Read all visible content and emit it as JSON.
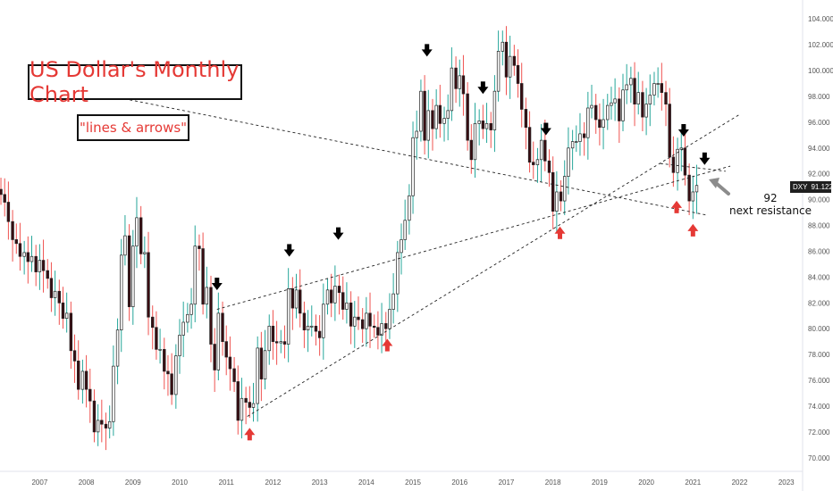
{
  "chart_data": {
    "type": "candlestick",
    "title": "US Dollar's Monthly Chart",
    "subtitle": "\"lines & arrows\"",
    "symbol": "DXY",
    "last_price": "91.122",
    "annotation_value": "92",
    "annotation_text": "next resistance",
    "x_ticks": [
      "2007",
      "2008",
      "2009",
      "2010",
      "2011",
      "2012",
      "2013",
      "2014",
      "2015",
      "2016",
      "2017",
      "2018",
      "2019",
      "2020",
      "2021",
      "2022",
      "2023"
    ],
    "y_ticks": [
      "104.000",
      "102.000",
      "100.000",
      "98.000",
      "96.000",
      "94.000",
      "92.000",
      "90.000",
      "88.000",
      "86.000",
      "84.000",
      "82.000",
      "80.000",
      "78.000",
      "76.000",
      "74.000",
      "72.000",
      "70.000"
    ],
    "ylim": [
      69.5,
      104.5
    ],
    "xlim": [
      2006.15,
      2023.35
    ],
    "closes": [
      {
        "t": 2006.17,
        "c": 90.4
      },
      {
        "t": 2006.25,
        "c": 89.8
      },
      {
        "t": 2006.33,
        "c": 88.3
      },
      {
        "t": 2006.42,
        "c": 86.9
      },
      {
        "t": 2006.5,
        "c": 86.6
      },
      {
        "t": 2006.58,
        "c": 85.6
      },
      {
        "t": 2006.67,
        "c": 85.9
      },
      {
        "t": 2006.75,
        "c": 85.2
      },
      {
        "t": 2006.83,
        "c": 85.6
      },
      {
        "t": 2006.92,
        "c": 84.4
      },
      {
        "t": 2007.0,
        "c": 85.3
      },
      {
        "t": 2007.08,
        "c": 84.5
      },
      {
        "t": 2007.17,
        "c": 83.9
      },
      {
        "t": 2007.25,
        "c": 82.4
      },
      {
        "t": 2007.33,
        "c": 82.9
      },
      {
        "t": 2007.42,
        "c": 82.0
      },
      {
        "t": 2007.5,
        "c": 80.8
      },
      {
        "t": 2007.58,
        "c": 81.2
      },
      {
        "t": 2007.67,
        "c": 78.3
      },
      {
        "t": 2007.75,
        "c": 77.5
      },
      {
        "t": 2007.83,
        "c": 75.3
      },
      {
        "t": 2007.92,
        "c": 76.7
      },
      {
        "t": 2008.0,
        "c": 75.3
      },
      {
        "t": 2008.08,
        "c": 74.4
      },
      {
        "t": 2008.17,
        "c": 72.0
      },
      {
        "t": 2008.25,
        "c": 72.9
      },
      {
        "t": 2008.33,
        "c": 72.6
      },
      {
        "t": 2008.42,
        "c": 72.3
      },
      {
        "t": 2008.5,
        "c": 72.8
      },
      {
        "t": 2008.58,
        "c": 77.1
      },
      {
        "t": 2008.67,
        "c": 79.9
      },
      {
        "t": 2008.75,
        "c": 85.7
      },
      {
        "t": 2008.83,
        "c": 87.2
      },
      {
        "t": 2008.92,
        "c": 81.7
      },
      {
        "t": 2009.0,
        "c": 86.4
      },
      {
        "t": 2009.08,
        "c": 88.6
      },
      {
        "t": 2009.17,
        "c": 85.8
      },
      {
        "t": 2009.25,
        "c": 85.9
      },
      {
        "t": 2009.33,
        "c": 80.9
      },
      {
        "t": 2009.42,
        "c": 80.1
      },
      {
        "t": 2009.5,
        "c": 78.4
      },
      {
        "t": 2009.58,
        "c": 78.4
      },
      {
        "t": 2009.67,
        "c": 76.7
      },
      {
        "t": 2009.75,
        "c": 76.5
      },
      {
        "t": 2009.83,
        "c": 74.9
      },
      {
        "t": 2009.92,
        "c": 77.9
      },
      {
        "t": 2010.0,
        "c": 79.5
      },
      {
        "t": 2010.08,
        "c": 80.5
      },
      {
        "t": 2010.17,
        "c": 81.1
      },
      {
        "t": 2010.25,
        "c": 81.9
      },
      {
        "t": 2010.33,
        "c": 86.4
      },
      {
        "t": 2010.42,
        "c": 86.2
      },
      {
        "t": 2010.5,
        "c": 81.9
      },
      {
        "t": 2010.58,
        "c": 83.2
      },
      {
        "t": 2010.67,
        "c": 78.8
      },
      {
        "t": 2010.75,
        "c": 76.8
      },
      {
        "t": 2010.83,
        "c": 81.2
      },
      {
        "t": 2010.92,
        "c": 79.0
      },
      {
        "t": 2011.0,
        "c": 77.8
      },
      {
        "t": 2011.08,
        "c": 76.9
      },
      {
        "t": 2011.17,
        "c": 75.9
      },
      {
        "t": 2011.25,
        "c": 72.9
      },
      {
        "t": 2011.33,
        "c": 74.6
      },
      {
        "t": 2011.42,
        "c": 74.3
      },
      {
        "t": 2011.5,
        "c": 73.9
      },
      {
        "t": 2011.58,
        "c": 74.2
      },
      {
        "t": 2011.67,
        "c": 78.5
      },
      {
        "t": 2011.75,
        "c": 76.1
      },
      {
        "t": 2011.83,
        "c": 78.3
      },
      {
        "t": 2011.92,
        "c": 80.2
      },
      {
        "t": 2012.0,
        "c": 79.0
      },
      {
        "t": 2012.08,
        "c": 78.9
      },
      {
        "t": 2012.17,
        "c": 79.0
      },
      {
        "t": 2012.25,
        "c": 78.8
      },
      {
        "t": 2012.33,
        "c": 83.1
      },
      {
        "t": 2012.42,
        "c": 81.6
      },
      {
        "t": 2012.5,
        "c": 83.0
      },
      {
        "t": 2012.58,
        "c": 81.2
      },
      {
        "t": 2012.67,
        "c": 79.9
      },
      {
        "t": 2012.75,
        "c": 80.2
      },
      {
        "t": 2012.83,
        "c": 80.2
      },
      {
        "t": 2012.92,
        "c": 79.8
      },
      {
        "t": 2013.0,
        "c": 79.3
      },
      {
        "t": 2013.08,
        "c": 81.9
      },
      {
        "t": 2013.17,
        "c": 83.0
      },
      {
        "t": 2013.25,
        "c": 82.0
      },
      {
        "t": 2013.33,
        "c": 83.3
      },
      {
        "t": 2013.42,
        "c": 82.8
      },
      {
        "t": 2013.5,
        "c": 81.5
      },
      {
        "t": 2013.58,
        "c": 82.0
      },
      {
        "t": 2013.67,
        "c": 80.2
      },
      {
        "t": 2013.75,
        "c": 80.9
      },
      {
        "t": 2013.83,
        "c": 80.7
      },
      {
        "t": 2013.92,
        "c": 80.0
      },
      {
        "t": 2014.0,
        "c": 81.2
      },
      {
        "t": 2014.08,
        "c": 80.2
      },
      {
        "t": 2014.17,
        "c": 80.1
      },
      {
        "t": 2014.25,
        "c": 79.5
      },
      {
        "t": 2014.33,
        "c": 80.4
      },
      {
        "t": 2014.42,
        "c": 80.0
      },
      {
        "t": 2014.5,
        "c": 81.5
      },
      {
        "t": 2014.58,
        "c": 82.7
      },
      {
        "t": 2014.67,
        "c": 85.9
      },
      {
        "t": 2014.75,
        "c": 86.9
      },
      {
        "t": 2014.83,
        "c": 88.4
      },
      {
        "t": 2014.92,
        "c": 90.3
      },
      {
        "t": 2015.0,
        "c": 94.8
      },
      {
        "t": 2015.08,
        "c": 95.3
      },
      {
        "t": 2015.17,
        "c": 98.4
      },
      {
        "t": 2015.25,
        "c": 94.6
      },
      {
        "t": 2015.33,
        "c": 96.9
      },
      {
        "t": 2015.42,
        "c": 95.5
      },
      {
        "t": 2015.5,
        "c": 97.3
      },
      {
        "t": 2015.58,
        "c": 95.9
      },
      {
        "t": 2015.67,
        "c": 96.3
      },
      {
        "t": 2015.75,
        "c": 96.9
      },
      {
        "t": 2015.83,
        "c": 100.2
      },
      {
        "t": 2015.92,
        "c": 98.6
      },
      {
        "t": 2016.0,
        "c": 99.6
      },
      {
        "t": 2016.08,
        "c": 98.2
      },
      {
        "t": 2016.17,
        "c": 94.6
      },
      {
        "t": 2016.25,
        "c": 93.1
      },
      {
        "t": 2016.33,
        "c": 95.9
      },
      {
        "t": 2016.42,
        "c": 96.1
      },
      {
        "t": 2016.5,
        "c": 95.5
      },
      {
        "t": 2016.58,
        "c": 95.9
      },
      {
        "t": 2016.67,
        "c": 95.4
      },
      {
        "t": 2016.75,
        "c": 98.4
      },
      {
        "t": 2016.83,
        "c": 101.5
      },
      {
        "t": 2016.92,
        "c": 102.2
      },
      {
        "t": 2017.0,
        "c": 99.5
      },
      {
        "t": 2017.08,
        "c": 101.1
      },
      {
        "t": 2017.17,
        "c": 100.4
      },
      {
        "t": 2017.25,
        "c": 99.0
      },
      {
        "t": 2017.33,
        "c": 97.0
      },
      {
        "t": 2017.42,
        "c": 95.6
      },
      {
        "t": 2017.5,
        "c": 92.9
      },
      {
        "t": 2017.58,
        "c": 92.7
      },
      {
        "t": 2017.67,
        "c": 93.1
      },
      {
        "t": 2017.75,
        "c": 94.6
      },
      {
        "t": 2017.83,
        "c": 93.0
      },
      {
        "t": 2017.92,
        "c": 92.1
      },
      {
        "t": 2018.0,
        "c": 89.1
      },
      {
        "t": 2018.08,
        "c": 90.6
      },
      {
        "t": 2018.17,
        "c": 89.9
      },
      {
        "t": 2018.25,
        "c": 91.8
      },
      {
        "t": 2018.33,
        "c": 94.0
      },
      {
        "t": 2018.42,
        "c": 94.5
      },
      {
        "t": 2018.5,
        "c": 94.5
      },
      {
        "t": 2018.58,
        "c": 95.1
      },
      {
        "t": 2018.67,
        "c": 94.8
      },
      {
        "t": 2018.75,
        "c": 97.1
      },
      {
        "t": 2018.83,
        "c": 97.3
      },
      {
        "t": 2018.92,
        "c": 96.2
      },
      {
        "t": 2019.0,
        "c": 95.6
      },
      {
        "t": 2019.08,
        "c": 96.2
      },
      {
        "t": 2019.17,
        "c": 97.3
      },
      {
        "t": 2019.25,
        "c": 97.5
      },
      {
        "t": 2019.33,
        "c": 97.8
      },
      {
        "t": 2019.42,
        "c": 96.1
      },
      {
        "t": 2019.5,
        "c": 98.5
      },
      {
        "t": 2019.58,
        "c": 98.9
      },
      {
        "t": 2019.67,
        "c": 99.4
      },
      {
        "t": 2019.75,
        "c": 97.4
      },
      {
        "t": 2019.83,
        "c": 98.3
      },
      {
        "t": 2019.92,
        "c": 96.4
      },
      {
        "t": 2020.0,
        "c": 97.4
      },
      {
        "t": 2020.08,
        "c": 98.1
      },
      {
        "t": 2020.17,
        "c": 99.0
      },
      {
        "t": 2020.25,
        "c": 99.0
      },
      {
        "t": 2020.33,
        "c": 98.3
      },
      {
        "t": 2020.42,
        "c": 97.4
      },
      {
        "t": 2020.5,
        "c": 93.3
      },
      {
        "t": 2020.58,
        "c": 92.1
      },
      {
        "t": 2020.67,
        "c": 93.9
      },
      {
        "t": 2020.75,
        "c": 94.0
      },
      {
        "t": 2020.83,
        "c": 91.9
      },
      {
        "t": 2020.92,
        "c": 89.9
      },
      {
        "t": 2021.0,
        "c": 90.6
      },
      {
        "t": 2021.08,
        "c": 91.1
      }
    ],
    "trendlines": [
      {
        "x1": 2006.9,
        "y1": 99.2,
        "x2": 2021.3,
        "y2": 88.8
      },
      {
        "x1": 2010.8,
        "y1": 81.5,
        "x2": 2021.8,
        "y2": 92.6
      },
      {
        "x1": 2011.45,
        "y1": 73.2,
        "x2": 2022.0,
        "y2": 96.6
      },
      {
        "x1": 2020.3,
        "y1": 92.8,
        "x2": 2021.7,
        "y2": 92.2
      }
    ],
    "down_arrows": [
      {
        "t": 2010.8,
        "y": 83.4
      },
      {
        "t": 2012.35,
        "y": 86.0
      },
      {
        "t": 2013.4,
        "y": 87.3
      },
      {
        "t": 2015.3,
        "y": 101.5
      },
      {
        "t": 2016.5,
        "y": 98.6
      },
      {
        "t": 2017.85,
        "y": 95.4
      },
      {
        "t": 2020.8,
        "y": 95.3
      },
      {
        "t": 2021.25,
        "y": 93.1
      }
    ],
    "up_arrows": [
      {
        "t": 2011.5,
        "y": 71.9
      },
      {
        "t": 2014.45,
        "y": 78.8
      },
      {
        "t": 2018.15,
        "y": 87.5
      },
      {
        "t": 2020.65,
        "y": 89.5
      },
      {
        "t": 2021.0,
        "y": 87.7
      }
    ],
    "colors": {
      "bull": "#26a69a",
      "bear": "#ef5350",
      "body_up": "#ffffff",
      "body_down": "#3a0d12",
      "arrow_up": "#e53935",
      "arrow_down": "#000000",
      "pointer": "#8c8c8c"
    }
  }
}
